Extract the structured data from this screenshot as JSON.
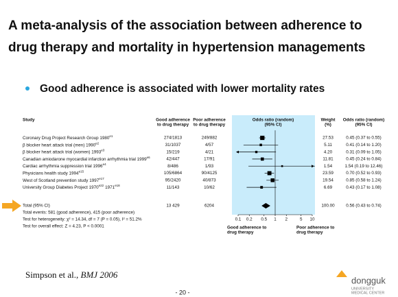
{
  "slide": {
    "title": [
      "A meta-analysis of the association between adherence to",
      "drug therapy and mortality in hypertension managements"
    ],
    "bullet": "Good adherence is associated with lower mortality rates",
    "citation": "Simpson et al.,",
    "citation_source": "BMJ 2006",
    "page_number": "- 20 -",
    "logo": [
      "dongguk",
      "UNIVERSITY",
      "MEDICAL CENTER"
    ]
  },
  "chart_data": {
    "type": "forest",
    "headers": {
      "study": [
        "Study"
      ],
      "good": [
        "Good adherence",
        "to drug therapy"
      ],
      "poor": [
        "Poor adherence",
        "to drug therapy"
      ],
      "plot": [
        "Odds ratio (random)",
        "(95% CI)"
      ],
      "weight": [
        "Weight",
        "(%)"
      ],
      "ci": [
        "Odds ratio (random)",
        "(95% CI)"
      ]
    },
    "studies": [
      {
        "label": [
          "Coronary Drug Project Research Group 1980",
          "e1"
        ],
        "good": "274/1813",
        "poor": "249/882",
        "weight": 27.53,
        "weight_label": "27.53",
        "or": 0.45,
        "lo": 0.37,
        "hi": 0.55,
        "ci_label": "0.45 (0.37 to 0.55)"
      },
      {
        "label": [
          "β blocker heart attack trial (men) 1990",
          "e2"
        ],
        "good": "31/1037",
        "poor": "4/57",
        "weight": 5.11,
        "weight_label": "5.11",
        "or": 0.41,
        "lo": 0.14,
        "hi": 1.2,
        "ci_label": "0.41 (0.14 to 1.20)"
      },
      {
        "label": [
          "β blocker heart attack trial (women) 1993",
          "e3"
        ],
        "good": "15/219",
        "poor": "4/21",
        "weight": 4.2,
        "weight_label": "4.20",
        "or": 0.31,
        "lo": 0.09,
        "hi": 1.05,
        "ci_label": "0.31 (0.09 to 1.05)"
      },
      {
        "label": [
          "Canadian amiodarone myocardial infarction arrhythmia trial 1999",
          "e6"
        ],
        "good": "42/447",
        "poor": "17/91",
        "weight": 11.81,
        "weight_label": "11.81",
        "or": 0.45,
        "lo": 0.24,
        "hi": 0.84,
        "ci_label": "0.45 (0.24 to 0.84)"
      },
      {
        "label": [
          "Cardiac arrhythmia suppression trial 1996",
          "e4"
        ],
        "good": "8/486",
        "poor": "1/93",
        "weight": 1.54,
        "weight_label": "1.54",
        "or": 1.54,
        "lo": 0.19,
        "hi": 12.46,
        "ci_label": "1.54 (0.19 to 12.46)"
      },
      {
        "label": [
          "Physicians health study 1994",
          "e15"
        ],
        "good": "105/6864",
        "poor": "90/4125",
        "weight": 23.59,
        "weight_label": "23.59",
        "or": 0.7,
        "lo": 0.52,
        "hi": 0.93,
        "ci_label": "0.70 (0.52 to 0.93)"
      },
      {
        "label": [
          "West of Scotland prevention study 1997",
          "e17"
        ],
        "good": "95/2420",
        "poor": "40/873",
        "weight": 19.54,
        "weight_label": "19.54",
        "or": 0.85,
        "lo": 0.58,
        "hi": 1.24,
        "ci_label": "0.85 (0.58 to 1.24)"
      },
      {
        "label": [
          "University Group Diabetes Project 1970",
          "e22",
          "1971",
          "e18"
        ],
        "good": "11/143",
        "poor": "10/62",
        "weight": 6.69,
        "weight_label": "6.69",
        "or": 0.43,
        "lo": 0.17,
        "hi": 1.08,
        "ci_label": "0.43 (0.17 to 1.08)"
      }
    ],
    "total": {
      "label": "Total (95% CI)",
      "good": "13 429",
      "poor": "6204",
      "weight": 100,
      "weight_label": "100.00",
      "or": 0.56,
      "lo": 0.43,
      "hi": 0.74,
      "ci_label": "0.56 (0.43 to 0.74)"
    },
    "notes": [
      "Total events: 581 (good adherence), 415 (poor adherence)",
      "Test for heterogeneity: χ² = 14.34, df = 7 (P = 0.05), I² = 51.2%",
      "Test for overall effect: Z = 4.23, P < 0.0001"
    ],
    "favours": [
      [
        "Good adherence to",
        "drug therapy"
      ],
      [
        "Poor adherence to",
        "drug therapy"
      ]
    ],
    "log_x": true,
    "xlim": [
      0.1,
      10
    ],
    "xticks": [
      0.1,
      0.2,
      0.5,
      1,
      2,
      5,
      10
    ],
    "panel_color": "#c9ecfb"
  }
}
